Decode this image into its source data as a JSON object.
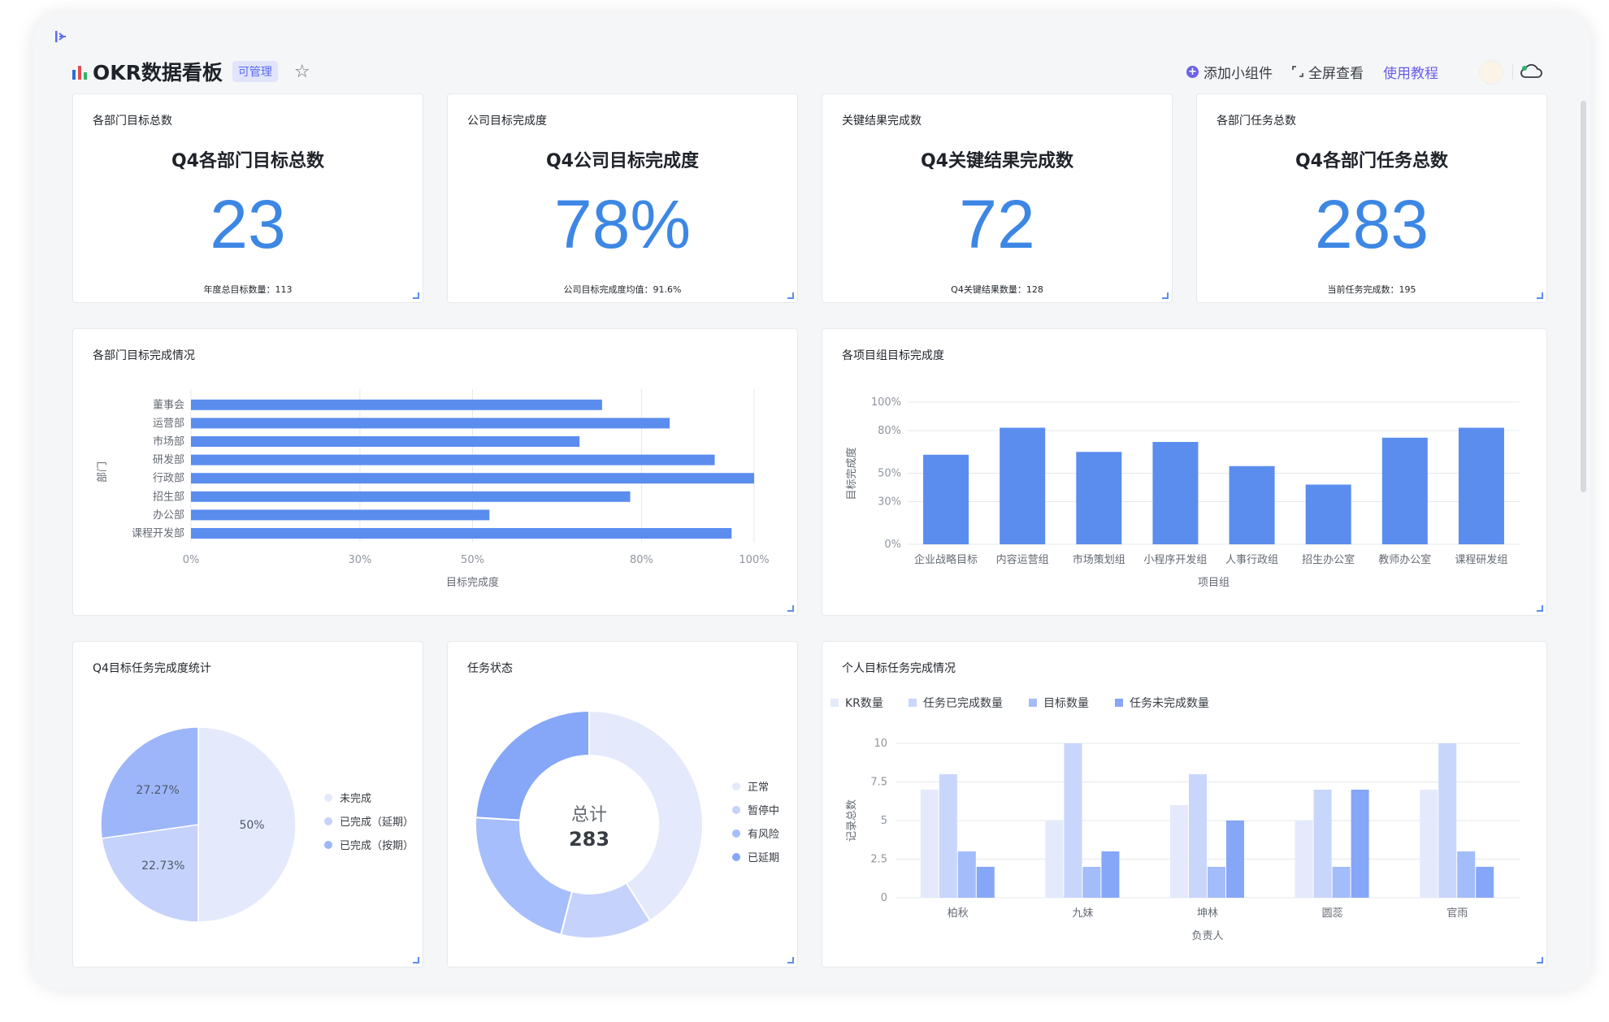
{
  "sidebar_toggle_glyph": "[▸",
  "header": {
    "title": "OKR数据看板",
    "badge": "可管理",
    "add_widget": "添加小组件",
    "fullscreen": "全屏查看",
    "tutorial": "使用教程"
  },
  "kpis": [
    {
      "label": "各部门目标总数",
      "title": "Q4各部门目标总数",
      "value": "23",
      "sub": "年度总目标数量：113"
    },
    {
      "label": "公司目标完成度",
      "title": "Q4公司目标完成度",
      "value": "78%",
      "sub": "公司目标完成度均值：91.6%"
    },
    {
      "label": "关键结果完成数",
      "title": "Q4关键结果完成数",
      "value": "72",
      "sub": "Q4关键结果数量：128"
    },
    {
      "label": "各部门任务总数",
      "title": "Q4各部门任务总数",
      "value": "283",
      "sub": "当前任务完成数：195"
    }
  ],
  "colors": {
    "primary": "#5b8def",
    "kpi": "#3d87e4"
  },
  "chart_data": [
    {
      "type": "bar",
      "orientation": "horizontal",
      "title": "各部门目标完成情况",
      "categories": [
        "董事会",
        "运营部",
        "市场部",
        "研发部",
        "行政部",
        "招生部",
        "办公部",
        "课程开发部"
      ],
      "values": [
        73,
        85,
        69,
        93,
        100,
        78,
        53,
        96
      ],
      "xlabel": "目标完成度",
      "ylabel": "部门",
      "xticks": [
        "0%",
        "30%",
        "50%",
        "80%",
        "100%"
      ],
      "xtick_values": [
        0,
        30,
        50,
        80,
        100
      ],
      "xlim": [
        0,
        100
      ]
    },
    {
      "type": "bar",
      "title": "各项目组目标完成度",
      "categories": [
        "企业战略目标",
        "内容运营组",
        "市场策划组",
        "小程序开发组",
        "人事行政组",
        "招生办公室",
        "教师办公室",
        "课程研发组"
      ],
      "values": [
        63,
        82,
        65,
        72,
        55,
        42,
        75,
        82
      ],
      "xlabel": "项目组",
      "ylabel": "目标完成度",
      "yticks": [
        "0%",
        "30%",
        "50%",
        "80%",
        "100%"
      ],
      "ytick_values": [
        0,
        30,
        50,
        80,
        100
      ],
      "ylim": [
        0,
        100
      ]
    },
    {
      "type": "pie",
      "title": "Q4目标任务完成度统计",
      "labels": [
        "未完成",
        "已完成（延期）",
        "已完成（按期）"
      ],
      "values": [
        50,
        22.73,
        27.27
      ],
      "value_labels": [
        "50%",
        "22.73%",
        "27.27%"
      ],
      "colors": [
        "#e4eafc",
        "#c5d2fb",
        "#9db6f9"
      ]
    },
    {
      "type": "pie",
      "variant": "donut",
      "title": "任务状态",
      "labels": [
        "正常",
        "暂停中",
        "有风险",
        "已延期"
      ],
      "values": [
        41,
        13,
        22,
        24
      ],
      "colors": [
        "#e4eafc",
        "#c5d2fb",
        "#a6befb",
        "#86a6f8"
      ],
      "center_label": "总计",
      "center_value": "283"
    },
    {
      "type": "bar",
      "title": "个人目标任务完成情况",
      "categories": [
        "柏秋",
        "九妹",
        "坤林",
        "圆蕊",
        "官雨"
      ],
      "series": [
        {
          "name": "KR数量",
          "values": [
            7,
            5,
            6,
            5,
            7
          ],
          "color": "#e4eafc"
        },
        {
          "name": "任务已完成数量",
          "values": [
            8,
            10,
            8,
            7,
            10
          ],
          "color": "#c9d6fc"
        },
        {
          "name": "目标数量",
          "values": [
            3,
            2,
            2,
            2,
            3
          ],
          "color": "#a3bcfa"
        },
        {
          "name": "任务未完成数量",
          "values": [
            2,
            3,
            5,
            7,
            2
          ],
          "color": "#86a6f8"
        }
      ],
      "xlabel": "负责人",
      "ylabel": "记录总数",
      "yticks": [
        "0",
        "2.5",
        "5",
        "7.5",
        "10"
      ],
      "ytick_values": [
        0,
        2.5,
        5,
        7.5,
        10
      ],
      "ylim": [
        0,
        10
      ]
    }
  ]
}
